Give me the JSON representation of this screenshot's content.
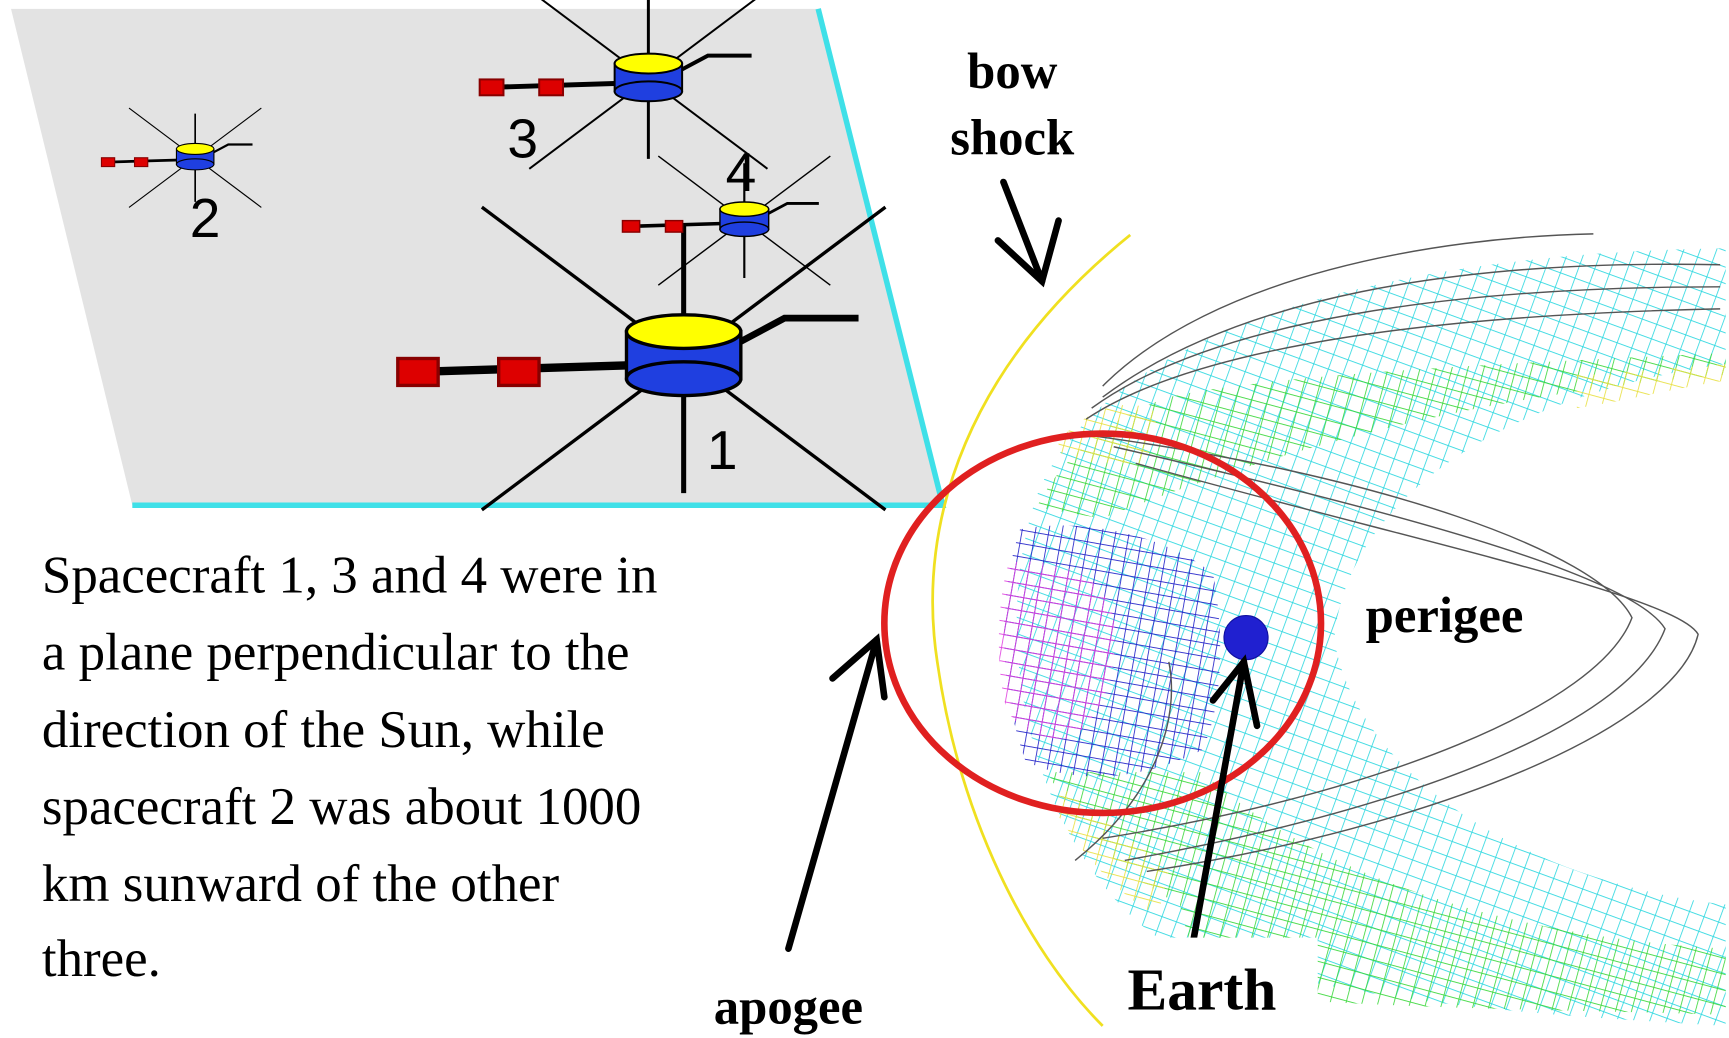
{
  "spacecraft": [
    {
      "label": "1"
    },
    {
      "label": "2"
    },
    {
      "label": "3"
    },
    {
      "label": "4"
    }
  ],
  "caption": [
    "Spacecraft 1, 3 and 4 were in",
    "a plane perpendicular to the",
    "direction of the Sun, while",
    "spacecraft 2 was about 1000",
    "km sunward of the other",
    "three."
  ],
  "labels": {
    "bow_shock": [
      "bow",
      "shock"
    ],
    "apogee": "apogee",
    "perigee": "perigee",
    "earth": "Earth"
  }
}
